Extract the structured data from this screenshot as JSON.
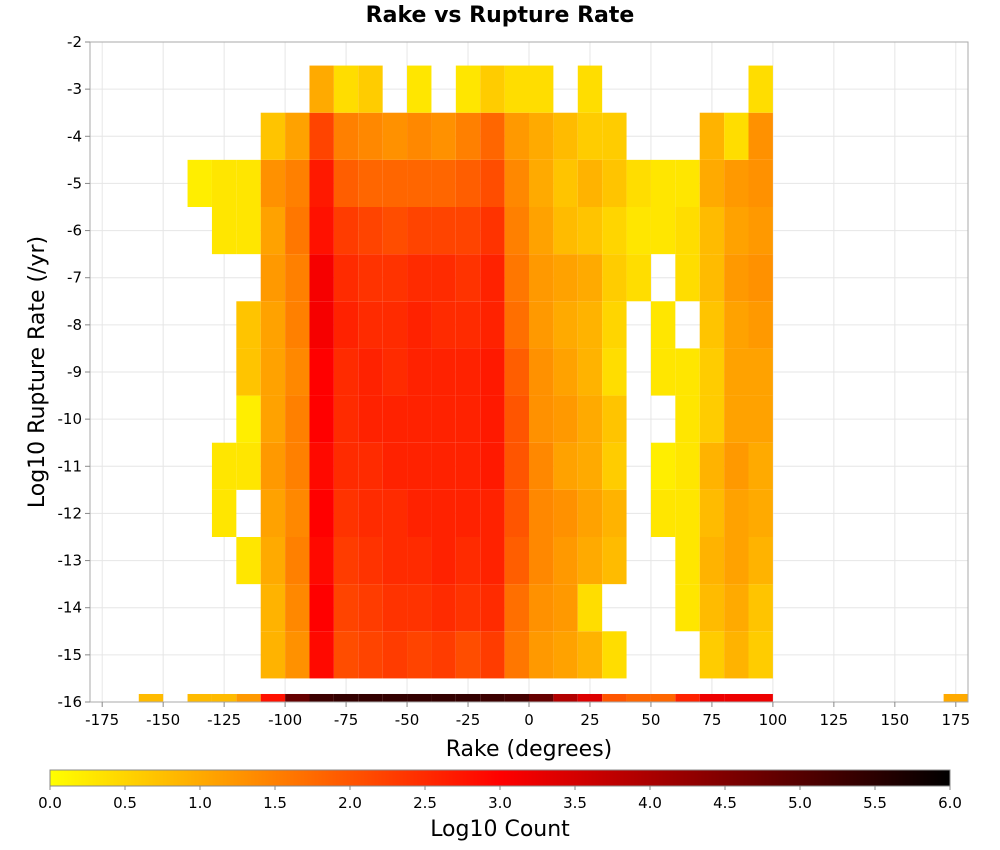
{
  "chart_data": {
    "type": "heatmap",
    "title": "Rake vs Rupture Rate",
    "xlabel": "Rake (degrees)",
    "ylabel": "Log10 Rupture Rate (/yr)",
    "xlim": [
      -180,
      180
    ],
    "ylim": [
      -16,
      -2
    ],
    "x_ticks": [
      -175,
      -150,
      -125,
      -100,
      -75,
      -50,
      -25,
      0,
      25,
      50,
      75,
      100,
      125,
      150,
      175
    ],
    "y_ticks": [
      -2,
      -3,
      -4,
      -5,
      -6,
      -7,
      -8,
      -9,
      -10,
      -11,
      -12,
      -13,
      -14,
      -15,
      -16
    ],
    "grid": true,
    "bin_width_x": 10,
    "bin_height_y": 0.5,
    "colorbar": {
      "label": "Log10 Count",
      "range": [
        0,
        6
      ],
      "ticks": [
        "0.0",
        "0.5",
        "1.0",
        "1.5",
        "2.0",
        "2.5",
        "3.0",
        "3.5",
        "4.0",
        "4.5",
        "5.0",
        "5.5",
        "6.0"
      ],
      "colors": [
        "#ffff00",
        "#ffaa00",
        "#ff5500",
        "#ff0000",
        "#aa0000",
        "#550000",
        "#000000"
      ]
    },
    "columns": [
      {
        "x": -155,
        "cells": [
          [
            -16,
            0.8
          ]
        ]
      },
      {
        "x": -135,
        "cells": [
          [
            -16,
            0.8
          ],
          [
            -5,
            0.2
          ]
        ]
      },
      {
        "x": -125,
        "cells": [
          [
            -16,
            0.8
          ],
          [
            -12,
            0.3
          ],
          [
            -11,
            0.3
          ],
          [
            -6,
            0.3
          ],
          [
            -5,
            0.3
          ]
        ]
      },
      {
        "x": -115,
        "cells": [
          [
            -16,
            1.2
          ],
          [
            -13,
            0.3
          ],
          [
            -11,
            0.3
          ],
          [
            -10,
            0.2
          ],
          [
            -9,
            0.7
          ],
          [
            -8,
            0.7
          ],
          [
            -6,
            0.3
          ],
          [
            -5,
            0.3
          ]
        ]
      },
      {
        "x": -105,
        "cells": [
          [
            -16,
            2.8
          ],
          [
            -15,
            0.9
          ],
          [
            -14,
            0.9
          ],
          [
            -13,
            1.0
          ],
          [
            -12,
            1.1
          ],
          [
            -11,
            1.2
          ],
          [
            -10,
            1.1
          ],
          [
            -9,
            1.1
          ],
          [
            -8,
            1.1
          ],
          [
            -7,
            1.2
          ],
          [
            -6,
            1.1
          ],
          [
            -5,
            1.3
          ],
          [
            -4,
            0.7
          ]
        ]
      },
      {
        "x": -95,
        "cells": [
          [
            -16,
            4.8
          ],
          [
            -15,
            1.3
          ],
          [
            -14,
            1.4
          ],
          [
            -13,
            1.5
          ],
          [
            -12,
            1.4
          ],
          [
            -11,
            1.5
          ],
          [
            -10,
            1.5
          ],
          [
            -9,
            1.4
          ],
          [
            -8,
            1.5
          ],
          [
            -7,
            1.5
          ],
          [
            -6,
            1.6
          ],
          [
            -5,
            1.5
          ],
          [
            -4,
            1.1
          ]
        ]
      },
      {
        "x": -85,
        "cells": [
          [
            -16,
            5.3
          ],
          [
            -15,
            2.9
          ],
          [
            -14,
            3.0
          ],
          [
            -13,
            2.9
          ],
          [
            -12,
            3.0
          ],
          [
            -11,
            2.9
          ],
          [
            -10,
            3.0
          ],
          [
            -9,
            3.0
          ],
          [
            -8,
            3.1
          ],
          [
            -7,
            3.1
          ],
          [
            -6,
            2.8
          ],
          [
            -5,
            2.7
          ],
          [
            -4,
            2.2
          ],
          [
            -3,
            1.0
          ]
        ]
      },
      {
        "x": -75,
        "cells": [
          [
            -16,
            5.4
          ],
          [
            -15,
            2.1
          ],
          [
            -14,
            2.2
          ],
          [
            -13,
            2.3
          ],
          [
            -12,
            2.4
          ],
          [
            -11,
            2.5
          ],
          [
            -10,
            2.5
          ],
          [
            -9,
            2.5
          ],
          [
            -8,
            2.6
          ],
          [
            -7,
            2.5
          ],
          [
            -6,
            2.3
          ],
          [
            -5,
            1.9
          ],
          [
            -4,
            1.5
          ],
          [
            -3,
            0.4
          ]
        ]
      },
      {
        "x": -65,
        "cells": [
          [
            -16,
            5.4
          ],
          [
            -15,
            2.2
          ],
          [
            -14,
            2.3
          ],
          [
            -13,
            2.4
          ],
          [
            -12,
            2.5
          ],
          [
            -11,
            2.5
          ],
          [
            -10,
            2.6
          ],
          [
            -9,
            2.6
          ],
          [
            -8,
            2.5
          ],
          [
            -7,
            2.4
          ],
          [
            -6,
            2.2
          ],
          [
            -5,
            1.8
          ],
          [
            -4,
            1.4
          ],
          [
            -3,
            0.6
          ]
        ]
      },
      {
        "x": -55,
        "cells": [
          [
            -16,
            5.4
          ],
          [
            -15,
            2.3
          ],
          [
            -14,
            2.4
          ],
          [
            -13,
            2.5
          ],
          [
            -12,
            2.5
          ],
          [
            -11,
            2.6
          ],
          [
            -10,
            2.6
          ],
          [
            -9,
            2.5
          ],
          [
            -8,
            2.5
          ],
          [
            -7,
            2.4
          ],
          [
            -6,
            2.1
          ],
          [
            -5,
            1.8
          ],
          [
            -4,
            1.3
          ]
        ]
      },
      {
        "x": -45,
        "cells": [
          [
            -16,
            5.4
          ],
          [
            -15,
            2.2
          ],
          [
            -14,
            2.4
          ],
          [
            -13,
            2.5
          ],
          [
            -12,
            2.6
          ],
          [
            -11,
            2.6
          ],
          [
            -10,
            2.6
          ],
          [
            -9,
            2.6
          ],
          [
            -8,
            2.6
          ],
          [
            -7,
            2.5
          ],
          [
            -6,
            2.2
          ],
          [
            -5,
            1.8
          ],
          [
            -4,
            1.4
          ],
          [
            -3,
            0.3
          ]
        ]
      },
      {
        "x": -35,
        "cells": [
          [
            -16,
            5.4
          ],
          [
            -15,
            2.3
          ],
          [
            -14,
            2.5
          ],
          [
            -13,
            2.6
          ],
          [
            -12,
            2.6
          ],
          [
            -11,
            2.6
          ],
          [
            -10,
            2.6
          ],
          [
            -9,
            2.6
          ],
          [
            -8,
            2.5
          ],
          [
            -7,
            2.5
          ],
          [
            -6,
            2.2
          ],
          [
            -5,
            1.8
          ],
          [
            -4,
            1.3
          ]
        ]
      },
      {
        "x": -25,
        "cells": [
          [
            -16,
            5.4
          ],
          [
            -15,
            2.1
          ],
          [
            -14,
            2.4
          ],
          [
            -13,
            2.5
          ],
          [
            -12,
            2.6
          ],
          [
            -11,
            2.6
          ],
          [
            -10,
            2.6
          ],
          [
            -9,
            2.6
          ],
          [
            -8,
            2.5
          ],
          [
            -7,
            2.4
          ],
          [
            -6,
            2.2
          ],
          [
            -5,
            1.9
          ],
          [
            -4,
            1.5
          ],
          [
            -3,
            0.3
          ]
        ]
      },
      {
        "x": -15,
        "cells": [
          [
            -16,
            5.3
          ],
          [
            -15,
            2.3
          ],
          [
            -14,
            2.5
          ],
          [
            -13,
            2.6
          ],
          [
            -12,
            2.6
          ],
          [
            -11,
            2.7
          ],
          [
            -10,
            2.7
          ],
          [
            -9,
            2.7
          ],
          [
            -8,
            2.6
          ],
          [
            -7,
            2.6
          ],
          [
            -6,
            2.4
          ],
          [
            -5,
            2.1
          ],
          [
            -4,
            1.8
          ],
          [
            -3,
            0.6
          ]
        ]
      },
      {
        "x": -5,
        "cells": [
          [
            -16,
            5.2
          ],
          [
            -15,
            1.6
          ],
          [
            -14,
            1.7
          ],
          [
            -13,
            1.9
          ],
          [
            -12,
            2.0
          ],
          [
            -11,
            2.0
          ],
          [
            -10,
            2.0
          ],
          [
            -9,
            1.9
          ],
          [
            -8,
            1.7
          ],
          [
            -7,
            1.6
          ],
          [
            -6,
            1.5
          ],
          [
            -5,
            1.4
          ],
          [
            -4,
            1.2
          ],
          [
            -3,
            0.4
          ]
        ]
      },
      {
        "x": 5,
        "cells": [
          [
            -16,
            4.8
          ],
          [
            -15,
            1.2
          ],
          [
            -14,
            1.3
          ],
          [
            -13,
            1.4
          ],
          [
            -12,
            1.4
          ],
          [
            -11,
            1.4
          ],
          [
            -10,
            1.3
          ],
          [
            -9,
            1.3
          ],
          [
            -8,
            1.2
          ],
          [
            -7,
            1.2
          ],
          [
            -6,
            1.1
          ],
          [
            -5,
            1.0
          ],
          [
            -4,
            1.0
          ],
          [
            -3,
            0.4
          ]
        ]
      },
      {
        "x": 15,
        "cells": [
          [
            -16,
            3.9
          ],
          [
            -15,
            1.1
          ],
          [
            -14,
            1.2
          ],
          [
            -13,
            1.2
          ],
          [
            -12,
            1.3
          ],
          [
            -11,
            1.1
          ],
          [
            -10,
            1.2
          ],
          [
            -9,
            1.1
          ],
          [
            -8,
            1.0
          ],
          [
            -7,
            1.1
          ],
          [
            -6,
            0.8
          ],
          [
            -5,
            0.7
          ],
          [
            -4,
            0.8
          ]
        ]
      },
      {
        "x": 25,
        "cells": [
          [
            -16,
            3.4
          ],
          [
            -15,
            0.9
          ],
          [
            -14,
            0.4
          ],
          [
            -13,
            1.0
          ],
          [
            -12,
            1.1
          ],
          [
            -11,
            1.0
          ],
          [
            -10,
            1.0
          ],
          [
            -9,
            0.9
          ],
          [
            -8,
            0.9
          ],
          [
            -7,
            1.0
          ],
          [
            -6,
            0.7
          ],
          [
            -5,
            0.9
          ],
          [
            -4,
            0.6
          ],
          [
            -3,
            0.4
          ]
        ]
      },
      {
        "x": 35,
        "cells": [
          [
            -16,
            2.0
          ],
          [
            -15,
            0.4
          ],
          [
            -13,
            0.8
          ],
          [
            -12,
            0.9
          ],
          [
            -11,
            0.6
          ],
          [
            -10,
            0.7
          ],
          [
            -9,
            0.4
          ],
          [
            -8,
            0.5
          ],
          [
            -7,
            0.6
          ],
          [
            -6,
            0.5
          ],
          [
            -5,
            0.7
          ],
          [
            -4,
            0.6
          ]
        ]
      },
      {
        "x": 45,
        "cells": [
          [
            -16,
            1.8
          ],
          [
            -7,
            0.4
          ],
          [
            -6,
            0.3
          ],
          [
            -5,
            0.4
          ]
        ]
      },
      {
        "x": 55,
        "cells": [
          [
            -16,
            1.8
          ],
          [
            -12,
            0.3
          ],
          [
            -11,
            0.2
          ],
          [
            -9,
            0.3
          ],
          [
            -8,
            0.3
          ],
          [
            -6,
            0.3
          ],
          [
            -5,
            0.3
          ]
        ]
      },
      {
        "x": 65,
        "cells": [
          [
            -16,
            2.6
          ],
          [
            -14,
            0.3
          ],
          [
            -13,
            0.3
          ],
          [
            -12,
            0.3
          ],
          [
            -11,
            0.3
          ],
          [
            -10,
            0.3
          ],
          [
            -9,
            0.3
          ],
          [
            -7,
            0.4
          ],
          [
            -6,
            0.4
          ],
          [
            -5,
            0.3
          ]
        ]
      },
      {
        "x": 75,
        "cells": [
          [
            -16,
            3.2
          ],
          [
            -15,
            0.6
          ],
          [
            -14,
            0.8
          ],
          [
            -13,
            0.9
          ],
          [
            -12,
            0.8
          ],
          [
            -11,
            0.9
          ],
          [
            -10,
            0.6
          ],
          [
            -9,
            0.6
          ],
          [
            -8,
            0.7
          ],
          [
            -7,
            0.8
          ],
          [
            -6,
            0.8
          ],
          [
            -5,
            1.0
          ],
          [
            -4,
            0.9
          ]
        ]
      },
      {
        "x": 85,
        "cells": [
          [
            -16,
            3.2
          ],
          [
            -15,
            0.9
          ],
          [
            -14,
            1.0
          ],
          [
            -13,
            1.1
          ],
          [
            -12,
            1.1
          ],
          [
            -11,
            1.2
          ],
          [
            -10,
            1.1
          ],
          [
            -9,
            1.1
          ],
          [
            -8,
            1.1
          ],
          [
            -7,
            1.2
          ],
          [
            -6,
            1.1
          ],
          [
            -5,
            1.2
          ],
          [
            -4,
            0.4
          ]
        ]
      },
      {
        "x": 95,
        "cells": [
          [
            -16,
            3.2
          ],
          [
            -15,
            0.6
          ],
          [
            -14,
            0.7
          ],
          [
            -13,
            0.9
          ],
          [
            -12,
            1.0
          ],
          [
            -11,
            1.0
          ],
          [
            -10,
            1.1
          ],
          [
            -9,
            1.1
          ],
          [
            -8,
            1.2
          ],
          [
            -7,
            1.3
          ],
          [
            -6,
            1.2
          ],
          [
            -5,
            1.3
          ],
          [
            -4,
            1.3
          ],
          [
            -3,
            0.4
          ]
        ]
      },
      {
        "x": 175,
        "cells": [
          [
            -16,
            1.0
          ]
        ]
      }
    ]
  }
}
